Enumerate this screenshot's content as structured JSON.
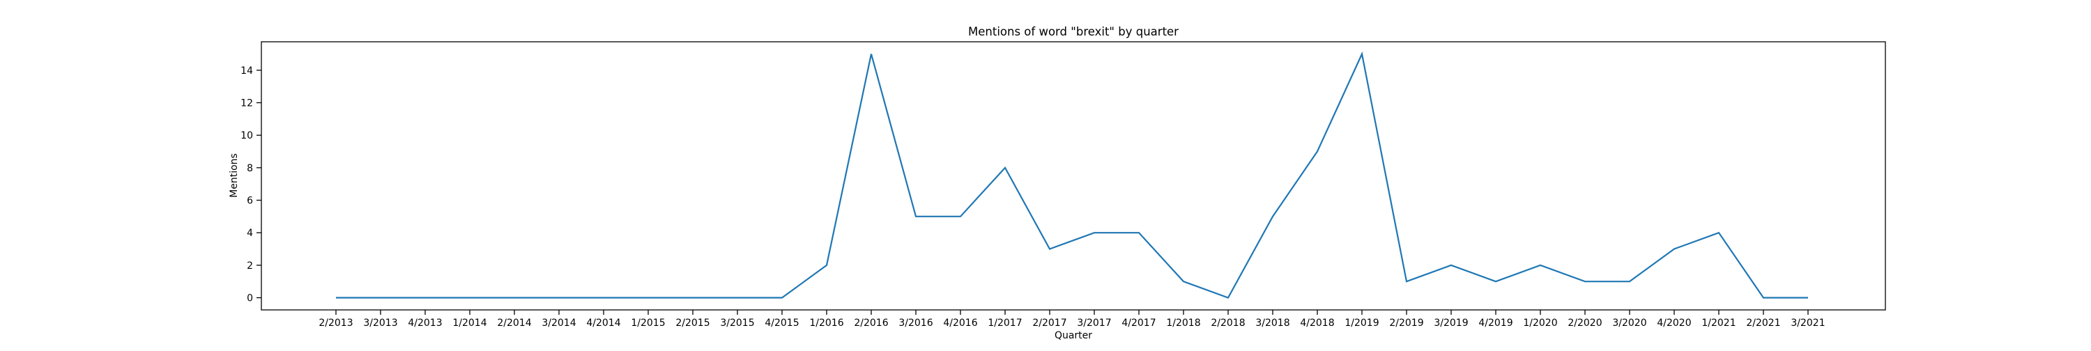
{
  "chart_data": {
    "type": "line",
    "title": "Mentions of word \"brexit\" by quarter",
    "xlabel": "Quarter",
    "ylabel": "Mentions",
    "categories": [
      "2/2013",
      "3/2013",
      "4/2013",
      "1/2014",
      "2/2014",
      "3/2014",
      "4/2014",
      "1/2015",
      "2/2015",
      "3/2015",
      "4/2015",
      "1/2016",
      "2/2016",
      "3/2016",
      "4/2016",
      "1/2017",
      "2/2017",
      "3/2017",
      "4/2017",
      "1/2018",
      "2/2018",
      "3/2018",
      "4/2018",
      "1/2019",
      "2/2019",
      "3/2019",
      "4/2019",
      "1/2020",
      "2/2020",
      "3/2020",
      "4/2020",
      "1/2021",
      "2/2021",
      "3/2021"
    ],
    "series": [
      {
        "values": [
          0,
          0,
          0,
          0,
          0,
          0,
          0,
          0,
          0,
          0,
          0,
          2,
          15,
          5,
          5,
          8,
          3,
          4,
          4,
          1,
          0,
          5,
          9,
          15,
          1,
          2,
          1,
          2,
          1,
          1,
          3,
          4,
          0,
          0
        ],
        "color": "#1f77b4"
      }
    ],
    "ylim": [
      -0.75,
      15.75
    ],
    "yticks": [
      0,
      2,
      4,
      6,
      8,
      10,
      12,
      14
    ],
    "grid": false,
    "legend": "none"
  }
}
